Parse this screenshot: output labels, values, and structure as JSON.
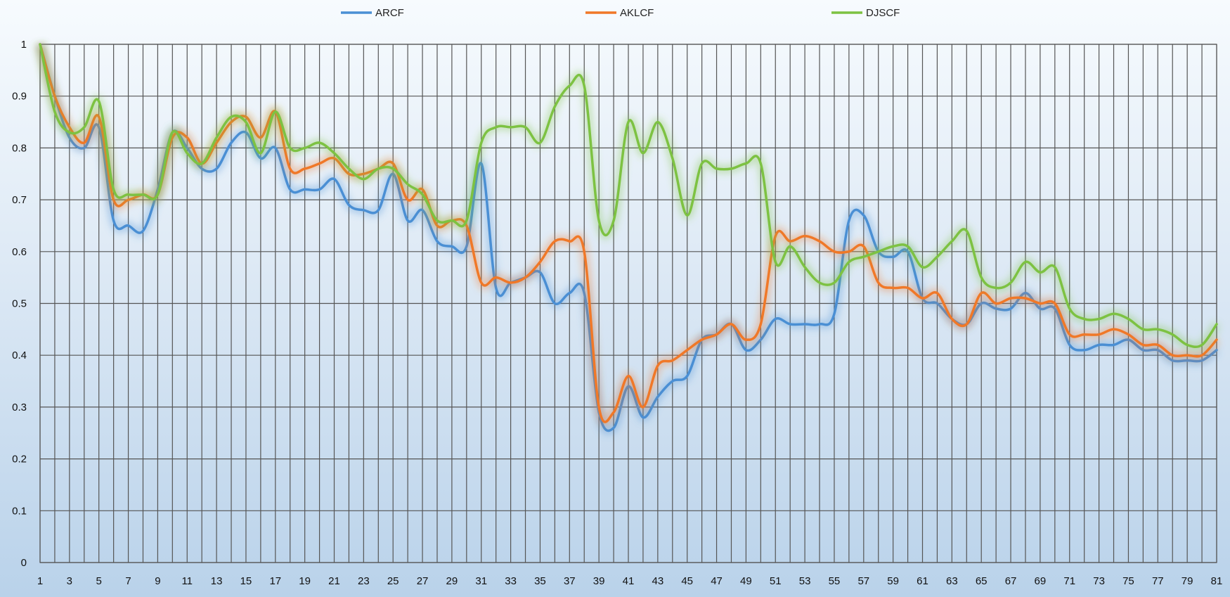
{
  "chart_data": {
    "type": "line",
    "title": "",
    "xlabel": "",
    "ylabel": "",
    "x": [
      1,
      2,
      3,
      4,
      5,
      6,
      7,
      8,
      9,
      10,
      11,
      12,
      13,
      14,
      15,
      16,
      17,
      18,
      19,
      20,
      21,
      22,
      23,
      24,
      25,
      26,
      27,
      28,
      29,
      30,
      31,
      32,
      33,
      34,
      35,
      36,
      37,
      38,
      39,
      40,
      41,
      42,
      43,
      44,
      45,
      46,
      47,
      48,
      49,
      50,
      51,
      52,
      53,
      54,
      55,
      56,
      57,
      58,
      59,
      60,
      61,
      62,
      63,
      64,
      65,
      66,
      67,
      68,
      69,
      70,
      71,
      72,
      73,
      74,
      75,
      76,
      77,
      78,
      79,
      80,
      81
    ],
    "xticks": [
      1,
      3,
      5,
      7,
      9,
      11,
      13,
      15,
      17,
      19,
      21,
      23,
      25,
      27,
      29,
      31,
      33,
      35,
      37,
      39,
      41,
      43,
      45,
      47,
      49,
      51,
      53,
      55,
      57,
      59,
      61,
      63,
      65,
      67,
      69,
      71,
      73,
      75,
      77,
      79,
      81
    ],
    "xtick_labels": [
      "1",
      "3",
      "5",
      "7",
      "9",
      "11",
      "13",
      "15",
      "17",
      "19",
      "21",
      "23",
      "25",
      "27",
      "29",
      "31",
      "33",
      "35",
      "37",
      "39",
      "41",
      "43",
      "45",
      "47",
      "49",
      "51",
      "53",
      "55",
      "57",
      "59",
      "61",
      "63",
      "65",
      "67",
      "69",
      "71",
      "73",
      "75",
      "77",
      "79",
      "81"
    ],
    "ylim": [
      0,
      1
    ],
    "yticks": [
      0,
      0.1,
      0.2,
      0.3,
      0.4,
      0.5,
      0.6,
      0.7,
      0.8,
      0.9,
      1
    ],
    "ytick_labels": [
      "0",
      "0.1",
      "0.2",
      "0.3",
      "0.4",
      "0.5",
      "0.6",
      "0.7",
      "0.8",
      "0.9",
      "1"
    ],
    "grid": true,
    "legend_position": "top",
    "series": [
      {
        "name": "ARCF",
        "color": "#4a8fd4",
        "values": [
          1.0,
          0.9,
          0.82,
          0.8,
          0.84,
          0.66,
          0.65,
          0.64,
          0.72,
          0.83,
          0.8,
          0.76,
          0.76,
          0.81,
          0.83,
          0.78,
          0.8,
          0.72,
          0.72,
          0.72,
          0.74,
          0.69,
          0.68,
          0.68,
          0.75,
          0.66,
          0.68,
          0.62,
          0.61,
          0.61,
          0.77,
          0.53,
          0.54,
          0.55,
          0.56,
          0.5,
          0.52,
          0.52,
          0.29,
          0.26,
          0.34,
          0.28,
          0.32,
          0.35,
          0.36,
          0.43,
          0.44,
          0.46,
          0.41,
          0.43,
          0.47,
          0.46,
          0.46,
          0.46,
          0.48,
          0.66,
          0.67,
          0.6,
          0.59,
          0.6,
          0.51,
          0.5,
          0.47,
          0.46,
          0.5,
          0.49,
          0.49,
          0.52,
          0.49,
          0.49,
          0.42,
          0.41,
          0.42,
          0.42,
          0.43,
          0.41,
          0.41,
          0.39,
          0.39,
          0.39,
          0.41
        ]
      },
      {
        "name": "AKLCF",
        "color": "#f07828",
        "values": [
          1.0,
          0.9,
          0.84,
          0.81,
          0.86,
          0.7,
          0.7,
          0.71,
          0.71,
          0.82,
          0.82,
          0.77,
          0.81,
          0.85,
          0.86,
          0.82,
          0.87,
          0.76,
          0.76,
          0.77,
          0.78,
          0.75,
          0.75,
          0.76,
          0.77,
          0.7,
          0.72,
          0.65,
          0.66,
          0.65,
          0.54,
          0.55,
          0.54,
          0.55,
          0.58,
          0.62,
          0.62,
          0.6,
          0.3,
          0.29,
          0.36,
          0.3,
          0.38,
          0.39,
          0.41,
          0.43,
          0.44,
          0.46,
          0.43,
          0.46,
          0.63,
          0.62,
          0.63,
          0.62,
          0.6,
          0.6,
          0.61,
          0.54,
          0.53,
          0.53,
          0.51,
          0.52,
          0.47,
          0.46,
          0.52,
          0.5,
          0.51,
          0.51,
          0.5,
          0.5,
          0.44,
          0.44,
          0.44,
          0.45,
          0.44,
          0.42,
          0.42,
          0.4,
          0.4,
          0.4,
          0.43
        ]
      },
      {
        "name": "DJSCF",
        "color": "#7dc242",
        "values": [
          1.0,
          0.87,
          0.83,
          0.84,
          0.89,
          0.72,
          0.71,
          0.71,
          0.71,
          0.83,
          0.79,
          0.77,
          0.82,
          0.86,
          0.85,
          0.79,
          0.87,
          0.8,
          0.8,
          0.81,
          0.79,
          0.76,
          0.74,
          0.76,
          0.76,
          0.73,
          0.71,
          0.66,
          0.66,
          0.66,
          0.81,
          0.84,
          0.84,
          0.84,
          0.81,
          0.88,
          0.92,
          0.92,
          0.66,
          0.66,
          0.85,
          0.79,
          0.85,
          0.78,
          0.67,
          0.77,
          0.76,
          0.76,
          0.77,
          0.77,
          0.58,
          0.61,
          0.57,
          0.54,
          0.54,
          0.58,
          0.59,
          0.6,
          0.61,
          0.61,
          0.57,
          0.59,
          0.62,
          0.64,
          0.55,
          0.53,
          0.54,
          0.58,
          0.56,
          0.57,
          0.49,
          0.47,
          0.47,
          0.48,
          0.47,
          0.45,
          0.45,
          0.44,
          0.42,
          0.42,
          0.46
        ]
      }
    ]
  }
}
